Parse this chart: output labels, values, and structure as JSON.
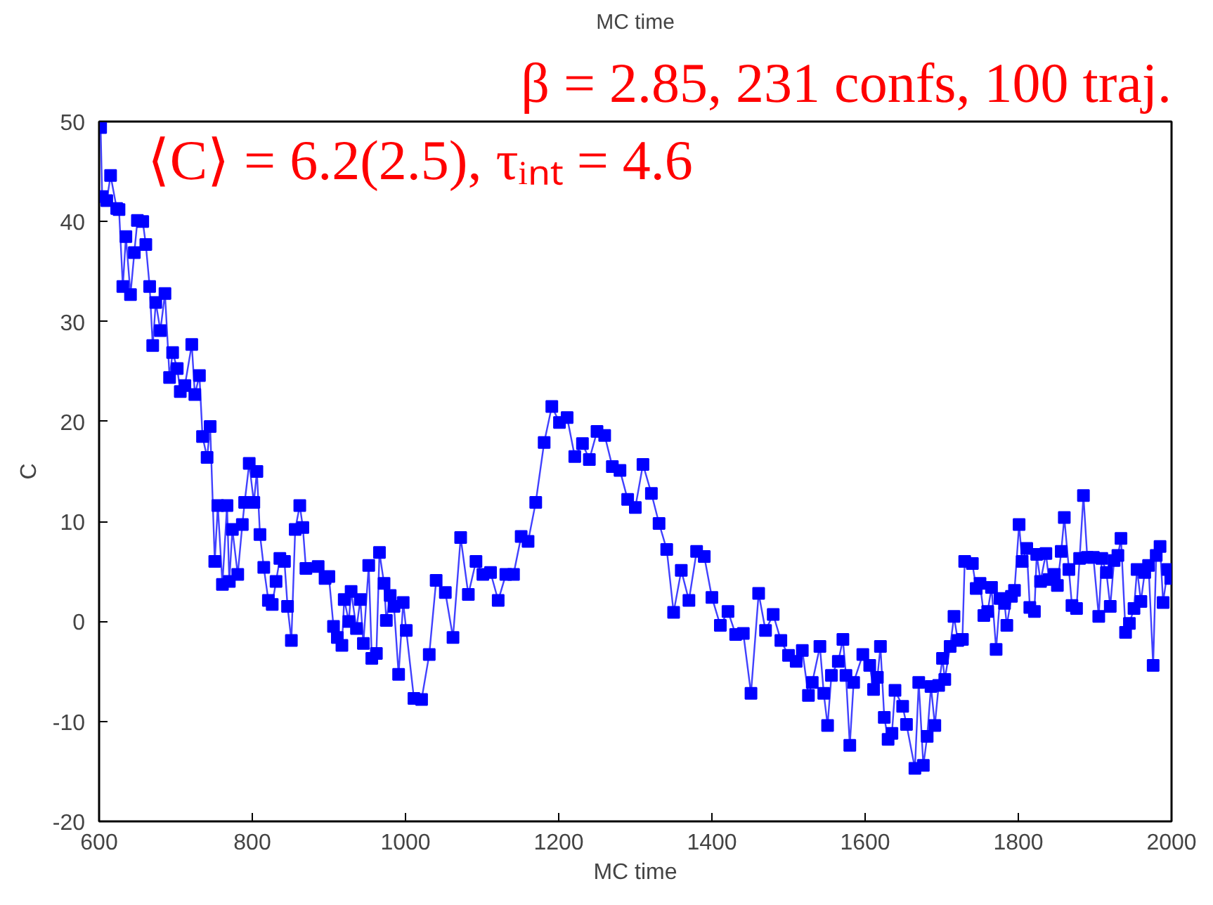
{
  "chart_data": {
    "type": "line",
    "title": "MC time",
    "xlabel": "MC time",
    "ylabel": "C",
    "annotations": [
      "β = 2.85, 231 confs, 100 traj.",
      "⟨C⟩ = 6.2(2.5), τᵢₙₜ = 4.6"
    ],
    "xlim": [
      600,
      2000
    ],
    "ylim": [
      -20,
      50
    ],
    "xticks": [
      600,
      800,
      1000,
      1200,
      1400,
      1600,
      1800,
      2000
    ],
    "yticks": [
      -20,
      -10,
      0,
      10,
      20,
      30,
      40,
      50
    ],
    "grid": false,
    "marker": "square",
    "line_style": "solid",
    "series": [
      {
        "color": "#0000ff",
        "x": [
          602,
          604,
          610,
          615,
          623,
          626,
          631,
          635,
          641,
          646,
          650,
          657,
          661,
          666,
          670,
          674,
          680,
          686,
          692,
          696,
          702,
          706,
          712,
          721,
          725,
          731,
          735,
          741,
          745,
          751,
          755,
          761,
          767,
          770,
          774,
          781,
          787,
          790,
          796,
          802,
          806,
          810,
          815,
          821,
          826,
          831,
          836,
          842,
          846,
          851,
          856,
          862,
          866,
          870,
          886,
          895,
          900,
          906,
          911,
          917,
          920,
          926,
          929,
          936,
          941,
          945,
          952,
          956,
          962,
          966,
          972,
          975,
          980,
          985,
          991,
          997,
          1001,
          1011,
          1021,
          1031,
          1040,
          1052,
          1062,
          1072,
          1082,
          1092,
          1101,
          1111,
          1121,
          1131,
          1141,
          1151,
          1160,
          1170,
          1181,
          1191,
          1201,
          1211,
          1221,
          1231,
          1240,
          1250,
          1260,
          1270,
          1280,
          1290,
          1300,
          1310,
          1321,
          1331,
          1341,
          1350,
          1360,
          1370,
          1380,
          1390,
          1400,
          1411,
          1421,
          1431,
          1441,
          1451,
          1461,
          1470,
          1480,
          1490,
          1500,
          1510,
          1518,
          1526,
          1531,
          1541,
          1546,
          1551,
          1556,
          1565,
          1571,
          1575,
          1580,
          1585,
          1597,
          1606,
          1611,
          1616,
          1620,
          1625,
          1630,
          1635,
          1639,
          1649,
          1654,
          1665,
          1670,
          1676,
          1681,
          1686,
          1691,
          1696,
          1701,
          1704,
          1711,
          1716,
          1721,
          1727,
          1730,
          1740,
          1745,
          1750,
          1755,
          1760,
          1765,
          1771,
          1776,
          1782,
          1785,
          1791,
          1795,
          1801,
          1805,
          1811,
          1815,
          1821,
          1824,
          1829,
          1836,
          1840,
          1847,
          1851,
          1856,
          1860,
          1866,
          1870,
          1876,
          1880,
          1885,
          1890,
          1898,
          1905,
          1909,
          1915,
          1920,
          1925,
          1930,
          1934,
          1940,
          1945,
          1951,
          1955,
          1960,
          1965,
          1970,
          1976,
          1980,
          1985,
          1989,
          1995,
          1999
        ],
        "values": [
          49.4,
          42.5,
          42.1,
          44.6,
          41.3,
          41.2,
          33.5,
          38.5,
          32.7,
          36.9,
          40.1,
          40.0,
          37.7,
          33.5,
          27.6,
          31.9,
          29.1,
          32.8,
          24.4,
          26.9,
          25.3,
          23.0,
          23.6,
          27.7,
          22.7,
          24.6,
          18.5,
          16.4,
          19.5,
          6.0,
          11.6,
          3.7,
          11.6,
          4.0,
          9.2,
          4.7,
          9.7,
          11.9,
          15.8,
          11.9,
          15.0,
          8.7,
          5.4,
          2.1,
          1.7,
          4.0,
          6.3,
          6.0,
          1.5,
          -1.9,
          9.2,
          11.6,
          9.4,
          5.3,
          5.5,
          4.3,
          4.5,
          -0.5,
          -1.6,
          -2.4,
          2.2,
          0.0,
          3.0,
          -0.7,
          2.2,
          -2.2,
          5.6,
          -3.7,
          -3.2,
          6.9,
          3.8,
          0.1,
          2.6,
          1.5,
          -5.3,
          1.9,
          -0.9,
          -7.7,
          -7.8,
          -3.3,
          4.1,
          2.9,
          -1.6,
          8.4,
          2.7,
          6.0,
          4.7,
          4.9,
          2.1,
          4.7,
          4.7,
          8.5,
          8.0,
          11.9,
          17.9,
          21.5,
          19.9,
          20.4,
          16.5,
          17.8,
          16.2,
          19.0,
          18.6,
          15.5,
          15.1,
          12.2,
          11.4,
          15.7,
          12.8,
          9.8,
          7.2,
          0.9,
          5.1,
          2.1,
          7.0,
          6.5,
          2.4,
          -0.4,
          1.0,
          -1.3,
          -1.2,
          -7.2,
          2.8,
          -0.9,
          0.7,
          -1.9,
          -3.4,
          -4.0,
          -2.9,
          -7.4,
          -6.1,
          -2.5,
          -7.2,
          -10.4,
          -5.4,
          -4.0,
          -1.8,
          -5.4,
          -12.4,
          -6.1,
          -3.3,
          -4.4,
          -6.8,
          -5.6,
          -2.5,
          -9.6,
          -11.8,
          -11.2,
          -6.9,
          -8.5,
          -10.3,
          -14.7,
          -6.1,
          -14.4,
          -11.5,
          -6.5,
          -10.4,
          -6.4,
          -3.7,
          -5.8,
          -2.5,
          0.5,
          -1.9,
          -1.8,
          6.0,
          5.8,
          3.3,
          3.8,
          0.6,
          1.0,
          3.4,
          -2.8,
          2.3,
          1.8,
          -0.4,
          2.5,
          3.1,
          9.7,
          6.0,
          7.3,
          1.4,
          1.0,
          6.7,
          4.0,
          6.8,
          4.2,
          4.7,
          3.6,
          7.0,
          10.4,
          5.2,
          1.6,
          1.3,
          6.3,
          12.6,
          6.4,
          6.4,
          0.5,
          6.3,
          4.9,
          1.5,
          6.1,
          6.6,
          8.3,
          -1.1,
          -0.2,
          1.3,
          5.2,
          2.0,
          4.9,
          5.6,
          -4.4,
          6.6,
          7.5,
          1.9,
          5.2,
          4.3
        ]
      }
    ]
  }
}
